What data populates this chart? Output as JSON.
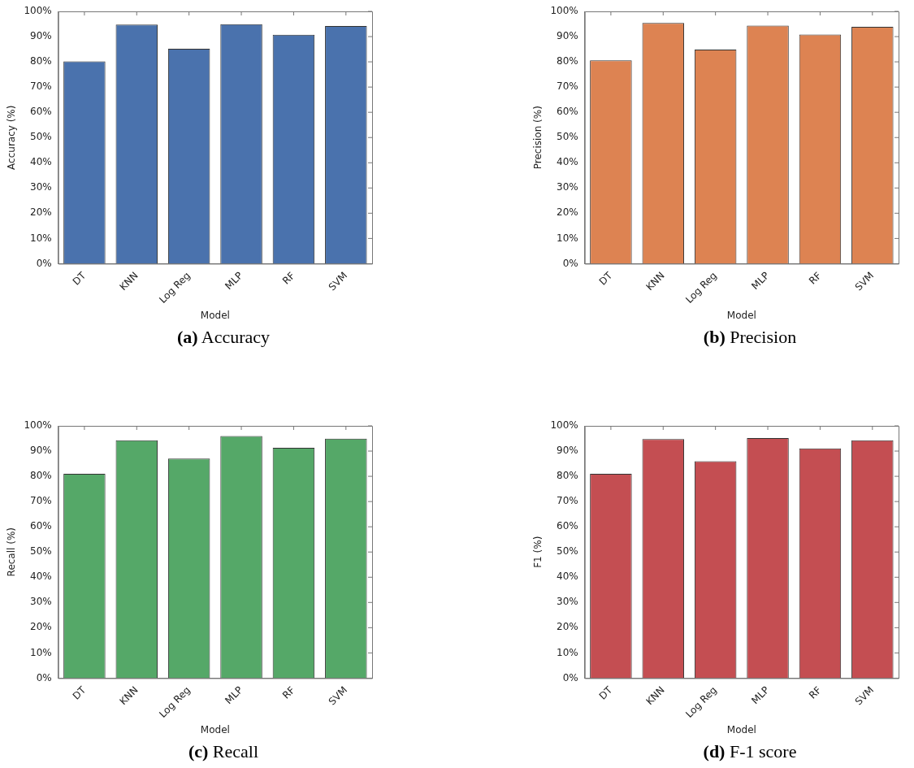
{
  "chart_data": [
    {
      "type": "bar",
      "title": "(a) Accuracy",
      "xlabel": "Model",
      "ylabel": "Accuracy (%)",
      "categories": [
        "DT",
        "KNN",
        "Log Reg",
        "MLP",
        "RF",
        "SVM"
      ],
      "values": [
        80.2,
        94.8,
        85.2,
        94.9,
        90.7,
        94.2
      ],
      "color": "#4a72ad",
      "ylim": [
        0,
        100
      ],
      "yticks": [
        {
          "value": 0,
          "label": "0%"
        },
        {
          "value": 10,
          "label": "10%"
        },
        {
          "value": 20,
          "label": "20%"
        },
        {
          "value": 30,
          "label": "30%"
        },
        {
          "value": 40,
          "label": "40%"
        },
        {
          "value": 50,
          "label": "50%"
        },
        {
          "value": 60,
          "label": "60%"
        },
        {
          "value": 70,
          "label": "70%"
        },
        {
          "value": 80,
          "label": "80%"
        },
        {
          "value": 90,
          "label": "90%"
        },
        {
          "value": 100,
          "label": "100%"
        }
      ],
      "grid": false,
      "legend": false
    },
    {
      "type": "bar",
      "title": "(b) Precision",
      "xlabel": "Model",
      "ylabel": "Precision (%)",
      "categories": [
        "DT",
        "KNN",
        "Log Reg",
        "MLP",
        "RF",
        "SVM"
      ],
      "values": [
        80.6,
        95.4,
        84.9,
        94.4,
        90.8,
        93.9
      ],
      "color": "#dd8352",
      "ylim": [
        0,
        100
      ],
      "yticks": [
        {
          "value": 0,
          "label": "0%"
        },
        {
          "value": 10,
          "label": "10%"
        },
        {
          "value": 20,
          "label": "20%"
        },
        {
          "value": 30,
          "label": "30%"
        },
        {
          "value": 40,
          "label": "40%"
        },
        {
          "value": 50,
          "label": "50%"
        },
        {
          "value": 60,
          "label": "60%"
        },
        {
          "value": 70,
          "label": "70%"
        },
        {
          "value": 80,
          "label": "80%"
        },
        {
          "value": 90,
          "label": "90%"
        },
        {
          "value": 100,
          "label": "100%"
        }
      ],
      "grid": false,
      "legend": false
    },
    {
      "type": "bar",
      "title": "(c) Recall",
      "xlabel": "Model",
      "ylabel": "Recall (%)",
      "categories": [
        "DT",
        "KNN",
        "Log Reg",
        "MLP",
        "RF",
        "SVM"
      ],
      "values": [
        81,
        94.3,
        87,
        96,
        91.3,
        94.9
      ],
      "color": "#55a868",
      "ylim": [
        0,
        100
      ],
      "yticks": [
        {
          "value": 0,
          "label": "0%"
        },
        {
          "value": 10,
          "label": "10%"
        },
        {
          "value": 20,
          "label": "20%"
        },
        {
          "value": 30,
          "label": "30%"
        },
        {
          "value": 40,
          "label": "40%"
        },
        {
          "value": 50,
          "label": "50%"
        },
        {
          "value": 60,
          "label": "60%"
        },
        {
          "value": 70,
          "label": "70%"
        },
        {
          "value": 80,
          "label": "80%"
        },
        {
          "value": 90,
          "label": "90%"
        },
        {
          "value": 100,
          "label": "100%"
        }
      ],
      "grid": false,
      "legend": false
    },
    {
      "type": "bar",
      "title": "(d) F-1 score",
      "xlabel": "Model",
      "ylabel": "F1 (%)",
      "categories": [
        "DT",
        "KNN",
        "Log Reg",
        "MLP",
        "RF",
        "SVM"
      ],
      "values": [
        81,
        94.8,
        86,
        95.2,
        91.1,
        94.3
      ],
      "color": "#c44e52",
      "ylim": [
        0,
        100
      ],
      "yticks": [
        {
          "value": 0,
          "label": "0%"
        },
        {
          "value": 10,
          "label": "10%"
        },
        {
          "value": 20,
          "label": "20%"
        },
        {
          "value": 30,
          "label": "30%"
        },
        {
          "value": 40,
          "label": "40%"
        },
        {
          "value": 50,
          "label": "50%"
        },
        {
          "value": 60,
          "label": "60%"
        },
        {
          "value": 70,
          "label": "70%"
        },
        {
          "value": 80,
          "label": "80%"
        },
        {
          "value": 90,
          "label": "90%"
        },
        {
          "value": 100,
          "label": "100%"
        }
      ],
      "grid": false,
      "legend": false
    }
  ]
}
